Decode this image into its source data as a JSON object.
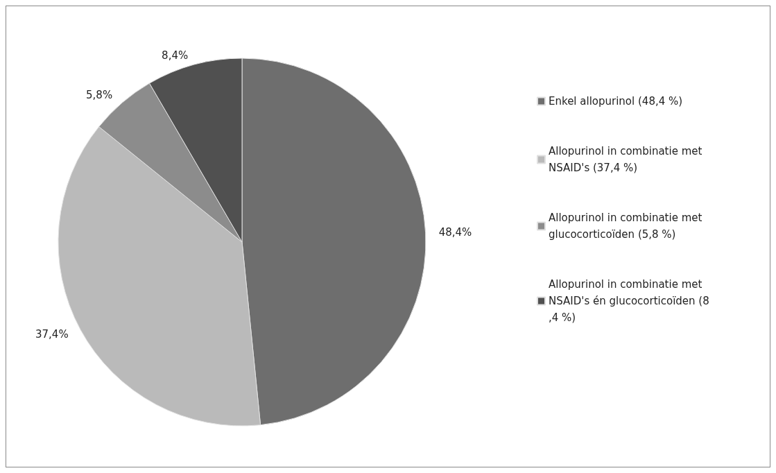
{
  "chart_data": {
    "type": "pie",
    "categories": [
      "Enkel allopurinol (48,4 %)",
      "Allopurinol in combinatie met NSAID's (37,4 %)",
      "Allopurinol in combinatie met glucocorticoïden (5,8 %)",
      "Allopurinol in combinatie met NSAID's én glucocorticoïden (8,4 %)"
    ],
    "values": [
      48.4,
      37.4,
      5.8,
      8.4
    ],
    "value_labels": [
      "48,4%",
      "37,4%",
      "5,8%",
      "8,4%"
    ],
    "colors": [
      "#6e6e6e",
      "#bababa",
      "#8c8c8c",
      "#505050"
    ],
    "legend": "right"
  }
}
